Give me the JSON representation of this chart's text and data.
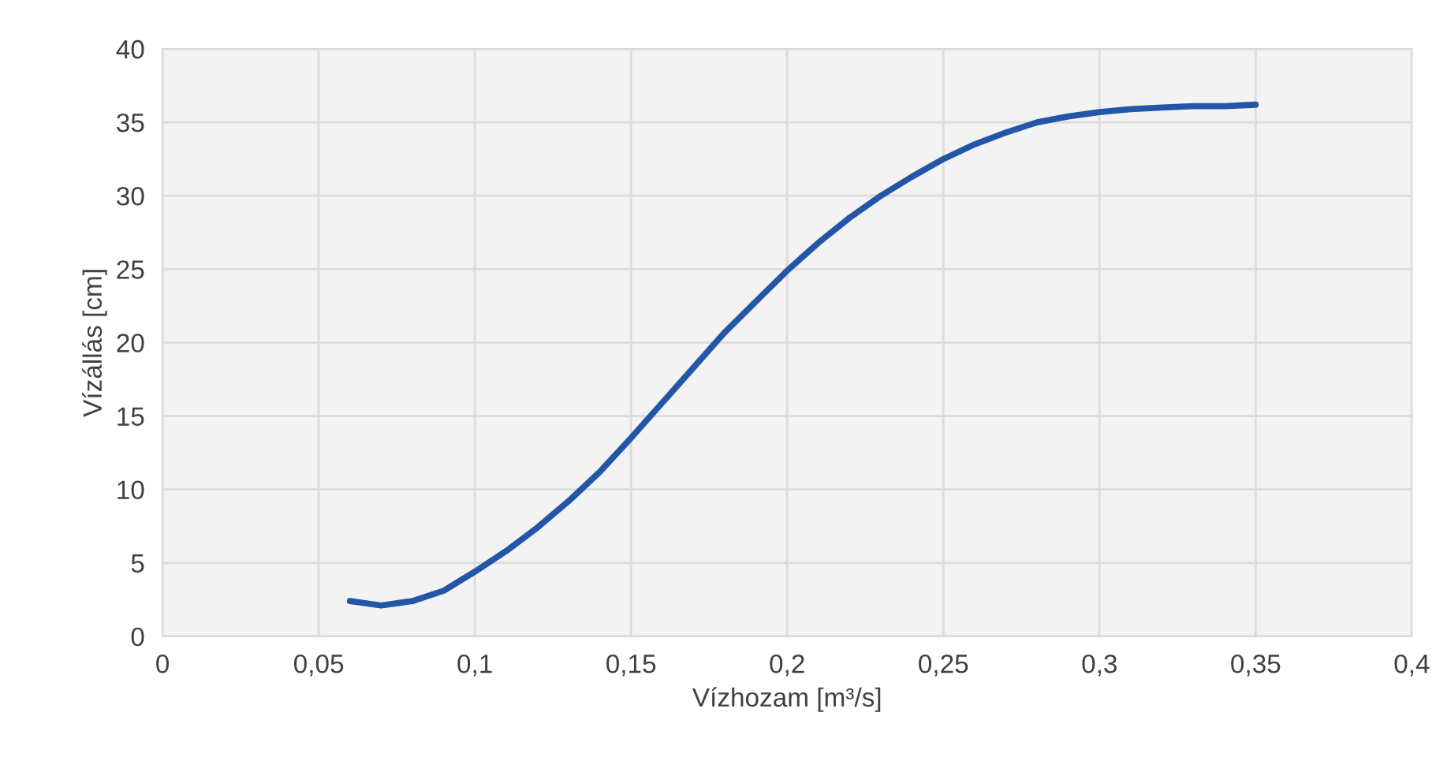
{
  "chart_data": {
    "type": "line",
    "xlabel": "Vízhozam [m³/s]",
    "ylabel": "Vízállás [cm]",
    "x": [
      0.06,
      0.07,
      0.08,
      0.09,
      0.1,
      0.11,
      0.12,
      0.13,
      0.14,
      0.15,
      0.16,
      0.17,
      0.18,
      0.19,
      0.2,
      0.21,
      0.22,
      0.23,
      0.24,
      0.25,
      0.26,
      0.27,
      0.28,
      0.29,
      0.3,
      0.31,
      0.32,
      0.33,
      0.34,
      0.35
    ],
    "series": [
      {
        "color": "#2456a8",
        "values": [
          2.4,
          2.1,
          2.4,
          3.1,
          4.4,
          5.8,
          7.4,
          9.2,
          11.2,
          13.5,
          15.9,
          18.3,
          20.7,
          22.8,
          24.9,
          26.8,
          28.5,
          30.0,
          31.3,
          32.5,
          33.5,
          34.3,
          35.0,
          35.4,
          35.7,
          35.9,
          36.0,
          36.1,
          36.1,
          36.2
        ]
      }
    ],
    "xlim": [
      0,
      0.4
    ],
    "ylim": [
      0,
      40
    ],
    "xticks": [
      0,
      {
        "value": 0.05,
        "label": "0,05"
      },
      {
        "value": 0.1,
        "label": "0,1"
      },
      {
        "value": 0.15,
        "label": "0,15"
      },
      {
        "value": 0.2,
        "label": "0,2"
      },
      {
        "value": 0.25,
        "label": "0,25"
      },
      {
        "value": 0.3,
        "label": "0,3"
      },
      {
        "value": 0.35,
        "label": "0,35"
      },
      {
        "value": 0.4,
        "label": "0,4"
      }
    ],
    "yticks": [
      0,
      5,
      10,
      15,
      20,
      25,
      30,
      35,
      40
    ],
    "grid": true,
    "marker": "none",
    "line_style": "solid"
  }
}
